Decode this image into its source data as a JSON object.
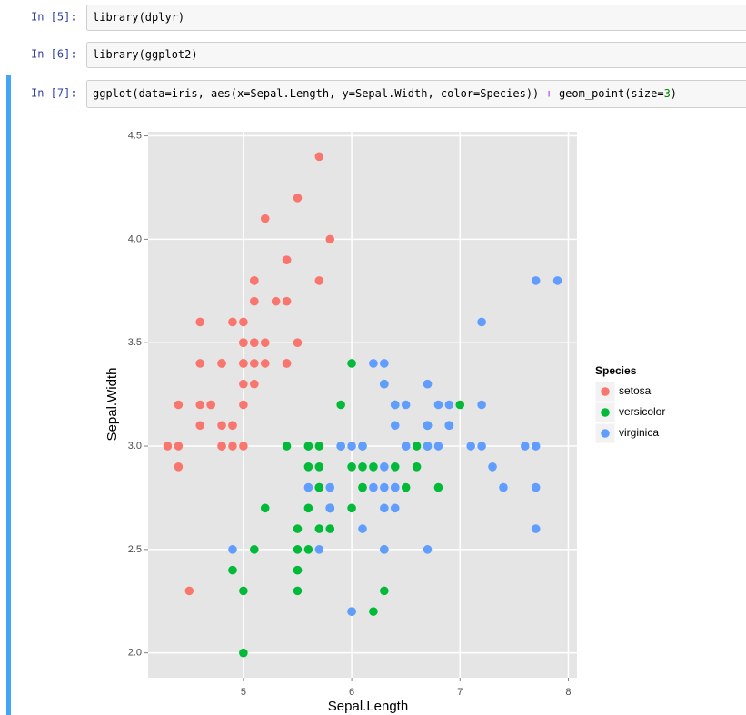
{
  "cells": [
    {
      "prompt": "In [5]:",
      "code": [
        "library(dplyr)"
      ]
    },
    {
      "prompt": "In [6]:",
      "code": [
        "library(ggplot2)"
      ]
    },
    {
      "prompt": "In [7]:",
      "code": [
        "ggplot(data=iris, aes(x=Sepal.Length, y=Sepal.Width, color=Species)) ",
        "+",
        " geom_point(size=",
        "3",
        ")"
      ]
    }
  ],
  "chart_data": {
    "type": "scatter",
    "x_label": "Sepal.Length",
    "y_label": "Sepal.Width",
    "legend_title": "Species",
    "legend": "right",
    "grid": true,
    "xlim": [
      4.12,
      8.08
    ],
    "ylim": [
      1.88,
      4.52
    ],
    "xticks": [
      5,
      6,
      7,
      8
    ],
    "yticks": [
      {
        "value": 2,
        "label": "2.0"
      },
      {
        "value": 2.5,
        "label": "2.5"
      },
      {
        "value": 3,
        "label": "3.0"
      },
      {
        "value": 3.5,
        "label": "3.5"
      },
      {
        "value": 4,
        "label": "4.0"
      },
      {
        "value": 4.5,
        "label": "4.5"
      }
    ],
    "series": [
      {
        "name": "setosa",
        "color": "#F8766D",
        "x": [
          5.1,
          4.9,
          4.7,
          4.6,
          5.0,
          5.4,
          4.6,
          5.0,
          4.4,
          4.9,
          5.4,
          4.8,
          4.8,
          4.3,
          5.8,
          5.7,
          5.4,
          5.1,
          5.7,
          5.1,
          5.4,
          5.1,
          4.6,
          5.1,
          4.8,
          5.0,
          5.0,
          5.2,
          5.2,
          4.7,
          4.8,
          5.4,
          5.2,
          5.5,
          4.9,
          5.0,
          5.5,
          4.9,
          4.4,
          5.1,
          5.0,
          4.5,
          4.4,
          5.0,
          5.1,
          4.8,
          5.1,
          4.6,
          5.3,
          5.0
        ],
        "values": [
          3.5,
          3.0,
          3.2,
          3.1,
          3.6,
          3.9,
          3.4,
          3.4,
          2.9,
          3.1,
          3.7,
          3.4,
          3.0,
          3.0,
          4.0,
          4.4,
          3.9,
          3.5,
          3.8,
          3.8,
          3.4,
          3.7,
          3.6,
          3.3,
          3.4,
          3.0,
          3.4,
          3.5,
          3.4,
          3.2,
          3.1,
          3.4,
          4.1,
          4.2,
          3.1,
          3.2,
          3.5,
          3.6,
          3.0,
          3.4,
          3.5,
          2.3,
          3.2,
          3.5,
          3.8,
          3.0,
          3.8,
          3.2,
          3.7,
          3.3
        ]
      },
      {
        "name": "versicolor",
        "color": "#00BA38",
        "x": [
          7.0,
          6.4,
          6.9,
          5.5,
          6.5,
          5.7,
          6.3,
          4.9,
          6.6,
          5.2,
          5.0,
          5.9,
          6.0,
          6.1,
          5.6,
          6.7,
          5.6,
          5.8,
          6.2,
          5.6,
          5.9,
          6.1,
          6.3,
          6.1,
          6.4,
          6.6,
          6.8,
          6.7,
          6.0,
          5.7,
          5.5,
          5.5,
          5.8,
          6.0,
          5.4,
          6.0,
          6.7,
          6.3,
          5.6,
          5.5,
          5.5,
          6.1,
          5.8,
          5.0,
          5.6,
          5.7,
          5.7,
          6.2,
          5.1,
          5.7
        ],
        "values": [
          3.2,
          3.2,
          3.1,
          2.3,
          2.8,
          2.8,
          3.3,
          2.4,
          2.9,
          2.7,
          2.0,
          3.0,
          2.2,
          2.9,
          2.9,
          3.1,
          3.0,
          2.7,
          2.2,
          2.5,
          3.2,
          2.8,
          2.5,
          2.8,
          2.9,
          3.0,
          2.8,
          3.0,
          2.9,
          2.6,
          2.4,
          2.4,
          2.7,
          2.7,
          3.0,
          3.4,
          3.1,
          2.3,
          3.0,
          2.5,
          2.6,
          3.0,
          2.6,
          2.3,
          2.7,
          3.0,
          2.9,
          2.9,
          2.5,
          2.8
        ]
      },
      {
        "name": "virginica",
        "color": "#619CFF",
        "x": [
          6.3,
          5.8,
          7.1,
          6.3,
          6.5,
          7.6,
          4.9,
          7.3,
          6.7,
          7.2,
          6.5,
          6.4,
          6.8,
          5.7,
          5.8,
          6.4,
          6.5,
          7.7,
          7.7,
          6.0,
          6.9,
          5.6,
          7.7,
          6.3,
          6.7,
          7.2,
          6.2,
          6.1,
          6.4,
          7.2,
          7.4,
          7.9,
          6.4,
          6.3,
          6.1,
          7.7,
          6.3,
          6.4,
          6.0,
          6.9,
          6.7,
          6.9,
          5.8,
          6.8,
          6.7,
          6.7,
          6.3,
          6.5,
          6.2,
          5.9
        ],
        "values": [
          3.3,
          2.7,
          3.0,
          2.9,
          3.0,
          3.0,
          2.5,
          2.9,
          2.5,
          3.6,
          3.2,
          2.7,
          3.0,
          2.5,
          2.8,
          3.2,
          3.0,
          3.8,
          2.6,
          2.2,
          3.2,
          2.8,
          2.8,
          2.7,
          3.3,
          3.2,
          2.8,
          3.0,
          2.8,
          3.0,
          2.8,
          3.8,
          2.8,
          2.8,
          2.6,
          3.0,
          3.4,
          3.1,
          3.0,
          3.1,
          3.1,
          3.1,
          2.7,
          3.2,
          3.3,
          3.0,
          2.5,
          3.0,
          3.4,
          3.0
        ]
      }
    ]
  }
}
